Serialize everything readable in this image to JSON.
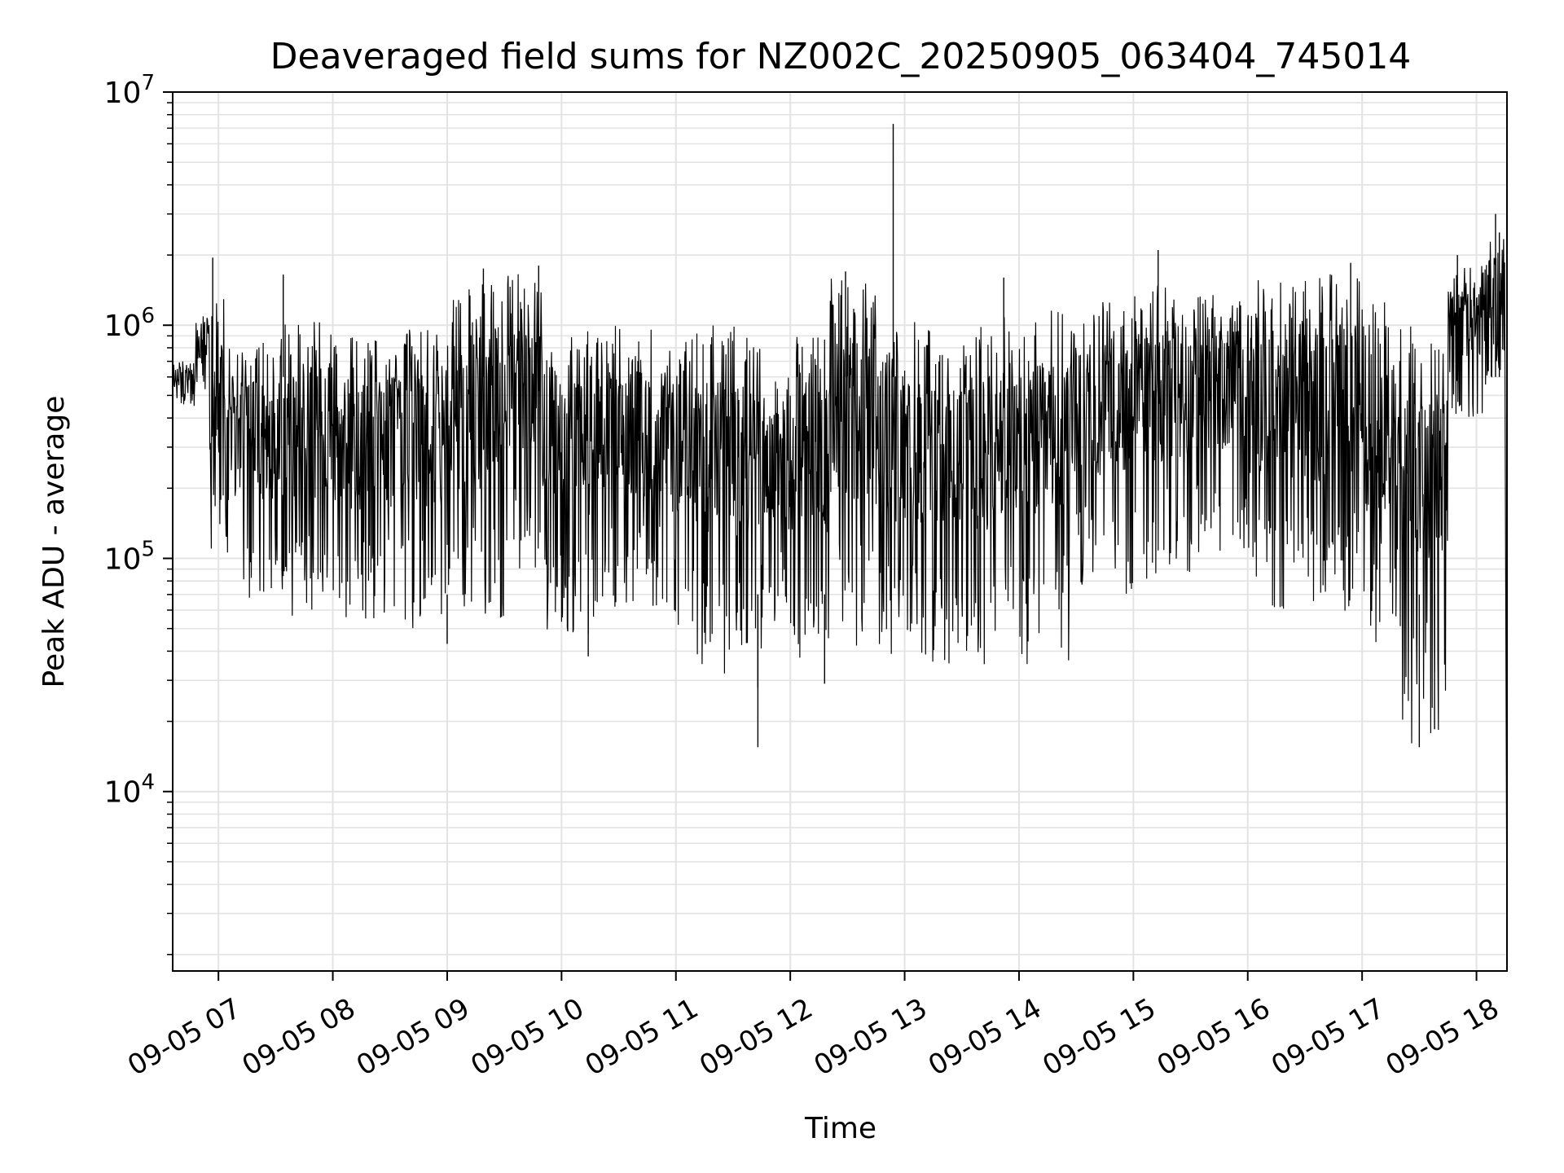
{
  "chart_data": {
    "type": "line",
    "title": "Deaveraged field sums for NZ002C_20250905_063404_745014",
    "xlabel": "Time",
    "ylabel": "Peak ADU - average",
    "xscale": "time",
    "yscale": "log",
    "xlim": [
      "2025-09-05T06:36",
      "2025-09-05T18:16"
    ],
    "ylim": [
      1700,
      10000000
    ],
    "grid": true,
    "x_ticks": [
      {
        "value": "2025-09-05T07:00",
        "label": "09-05 07"
      },
      {
        "value": "2025-09-05T08:00",
        "label": "09-05 08"
      },
      {
        "value": "2025-09-05T09:00",
        "label": "09-05 09"
      },
      {
        "value": "2025-09-05T10:00",
        "label": "09-05 10"
      },
      {
        "value": "2025-09-05T11:00",
        "label": "09-05 11"
      },
      {
        "value": "2025-09-05T12:00",
        "label": "09-05 12"
      },
      {
        "value": "2025-09-05T13:00",
        "label": "09-05 13"
      },
      {
        "value": "2025-09-05T14:00",
        "label": "09-05 14"
      },
      {
        "value": "2025-09-05T15:00",
        "label": "09-05 15"
      },
      {
        "value": "2025-09-05T16:00",
        "label": "09-05 16"
      },
      {
        "value": "2025-09-05T17:00",
        "label": "09-05 17"
      },
      {
        "value": "2025-09-05T18:00",
        "label": "09-05 18"
      }
    ],
    "y_ticks": [
      {
        "value": 10000,
        "base": "10",
        "exp": "4"
      },
      {
        "value": 100000,
        "base": "10",
        "exp": "5"
      },
      {
        "value": 1000000,
        "base": "10",
        "exp": "6"
      },
      {
        "value": 10000000,
        "base": "10",
        "exp": "7"
      }
    ],
    "series": [
      {
        "color": "#000000",
        "segments": [
          {
            "start": "2025-09-05T06:36",
            "end": "2025-09-05T06:48",
            "high": 700000,
            "low": 450000
          },
          {
            "start": "2025-09-05T06:48",
            "end": "2025-09-05T06:55",
            "high": 1100000,
            "low": 500000
          },
          {
            "start": "2025-09-05T06:55",
            "end": "2025-09-05T07:05",
            "high": 1300000,
            "low": 90000
          },
          {
            "start": "2025-09-05T07:05",
            "end": "2025-09-05T07:30",
            "high": 900000,
            "low": 60000
          },
          {
            "start": "2025-09-05T07:30",
            "end": "2025-09-05T08:00",
            "high": 1100000,
            "low": 55000
          },
          {
            "start": "2025-09-05T08:00",
            "end": "2025-09-05T08:30",
            "high": 900000,
            "low": 50000
          },
          {
            "start": "2025-09-05T08:30",
            "end": "2025-09-05T09:00",
            "high": 1000000,
            "low": 48000
          },
          {
            "start": "2025-09-05T09:00",
            "end": "2025-09-05T09:30",
            "high": 1500000,
            "low": 50000
          },
          {
            "start": "2025-09-05T09:30",
            "end": "2025-09-05T09:50",
            "high": 1700000,
            "low": 90000
          },
          {
            "start": "2025-09-05T09:50",
            "end": "2025-09-05T10:20",
            "high": 1000000,
            "low": 45000
          },
          {
            "start": "2025-09-05T10:20",
            "end": "2025-09-05T10:55",
            "high": 1000000,
            "low": 60000
          },
          {
            "start": "2025-09-05T10:55",
            "end": "2025-09-05T11:10",
            "high": 900000,
            "low": 50000
          },
          {
            "start": "2025-09-05T11:10",
            "end": "2025-09-05T11:45",
            "high": 1000000,
            "low": 32000
          },
          {
            "start": "2025-09-05T11:45",
            "end": "2025-09-05T12:00",
            "high": 600000,
            "low": 50000
          },
          {
            "start": "2025-09-05T12:00",
            "end": "2025-09-05T12:20",
            "high": 900000,
            "low": 33000
          },
          {
            "start": "2025-09-05T12:20",
            "end": "2025-09-05T12:45",
            "high": 1600000,
            "low": 40000
          },
          {
            "start": "2025-09-05T12:45",
            "end": "2025-09-05T13:15",
            "high": 1100000,
            "low": 36000
          },
          {
            "start": "2025-09-05T13:15",
            "end": "2025-09-05T13:30",
            "high": 900000,
            "low": 35000
          },
          {
            "start": "2025-09-05T13:30",
            "end": "2025-09-05T13:50",
            "high": 1000000,
            "low": 32000
          },
          {
            "start": "2025-09-05T13:50",
            "end": "2025-09-05T14:30",
            "high": 1200000,
            "low": 35000
          },
          {
            "start": "2025-09-05T14:30",
            "end": "2025-09-05T15:00",
            "high": 1300000,
            "low": 70000
          },
          {
            "start": "2025-09-05T15:00",
            "end": "2025-09-05T15:30",
            "high": 1500000,
            "low": 80000
          },
          {
            "start": "2025-09-05T15:30",
            "end": "2025-09-05T16:00",
            "high": 1500000,
            "low": 100000
          },
          {
            "start": "2025-09-05T16:00",
            "end": "2025-09-05T16:30",
            "high": 1600000,
            "low": 60000
          },
          {
            "start": "2025-09-05T16:30",
            "end": "2025-09-05T17:00",
            "high": 1700000,
            "low": 55000
          },
          {
            "start": "2025-09-05T17:00",
            "end": "2025-09-05T17:20",
            "high": 1300000,
            "low": 40000
          },
          {
            "start": "2025-09-05T17:20",
            "end": "2025-09-05T17:45",
            "high": 1000000,
            "low": 16000
          },
          {
            "start": "2025-09-05T17:45",
            "end": "2025-09-05T18:05",
            "high": 1800000,
            "low": 400000
          },
          {
            "start": "2025-09-05T18:05",
            "end": "2025-09-05T18:15",
            "high": 2500000,
            "low": 600000
          }
        ],
        "spikes": [
          {
            "x": "2025-09-05T12:54",
            "y": 7300000
          },
          {
            "x": "2025-09-05T18:10",
            "y": 3000000
          },
          {
            "x": "2025-09-05T15:13",
            "y": 2100000
          },
          {
            "x": "2025-09-05T06:57",
            "y": 1950000
          },
          {
            "x": "2025-09-05T18:12",
            "y": 2500000
          },
          {
            "x": "2025-09-05T09:19",
            "y": 1750000
          },
          {
            "x": "2025-09-05T09:48",
            "y": 1800000
          },
          {
            "x": "2025-09-05T12:29",
            "y": 1700000
          },
          {
            "x": "2025-09-05T13:52",
            "y": 1600000
          },
          {
            "x": "2025-09-05T17:50",
            "y": 2000000
          },
          {
            "x": "2025-09-05T16:54",
            "y": 1850000
          },
          {
            "x": "2025-09-05T07:34",
            "y": 1650000
          },
          {
            "x": "2025-09-05T11:43",
            "y": 15500
          },
          {
            "x": "2025-09-05T17:30",
            "y": 15500
          },
          {
            "x": "2025-09-05T17:38",
            "y": 18500
          },
          {
            "x": "2025-09-05T11:43",
            "y": 28000
          },
          {
            "x": "2025-09-05T12:18",
            "y": 29000
          },
          {
            "x": "2025-09-05T10:14",
            "y": 38000
          },
          {
            "x": "2025-09-05T09:00",
            "y": 43000
          }
        ],
        "end_drop": {
          "x": "2025-09-05T18:16",
          "y": 2000
        }
      }
    ]
  }
}
